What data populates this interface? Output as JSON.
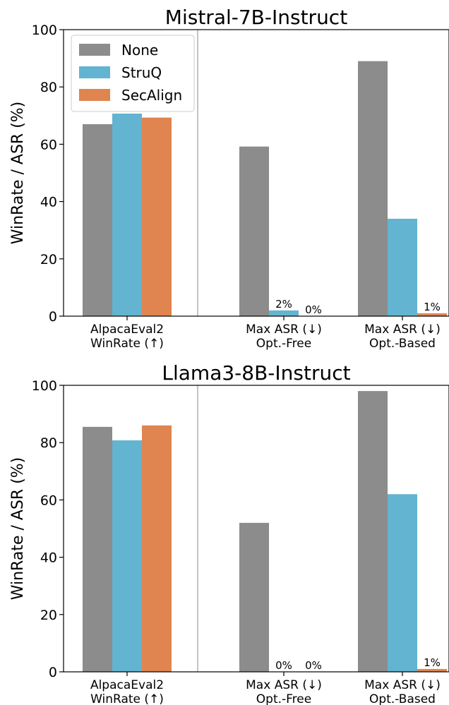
{
  "colors": {
    "None": "#8c8c8c",
    "StruQ": "#62b4d0",
    "SecAlign": "#e08450"
  },
  "legend": [
    "None",
    "StruQ",
    "SecAlign"
  ],
  "chart_data": [
    {
      "type": "bar",
      "title": "Mistral-7B-Instruct",
      "ylabel": "WinRate / ASR (%)",
      "ylim": [
        0,
        100
      ],
      "yticks": [
        "0",
        "20",
        "40",
        "60",
        "80",
        "100"
      ],
      "categories": [
        [
          "AlpacaEval2",
          "WinRate (↑)"
        ],
        [
          "Max ASR (↓)",
          "Opt.-Free"
        ],
        [
          "Max ASR (↓)",
          "Opt.-Based"
        ]
      ],
      "series": [
        {
          "name": "None",
          "values": [
            67,
            59.2,
            89
          ]
        },
        {
          "name": "StruQ",
          "values": [
            70.7,
            2,
            34
          ]
        },
        {
          "name": "SecAlign",
          "values": [
            69.3,
            0,
            1
          ]
        }
      ],
      "data_labels": [
        {
          "category": 1,
          "series": 1,
          "text": "2%"
        },
        {
          "category": 1,
          "series": 2,
          "text": "0%"
        },
        {
          "category": 2,
          "series": 2,
          "text": "1%"
        }
      ],
      "legend_position": "upper-left",
      "grid": false
    },
    {
      "type": "bar",
      "title": "Llama3-8B-Instruct",
      "ylabel": "WinRate / ASR (%)",
      "ylim": [
        0,
        100
      ],
      "yticks": [
        "0",
        "20",
        "40",
        "60",
        "80",
        "100"
      ],
      "categories": [
        [
          "AlpacaEval2",
          "WinRate (↑)"
        ],
        [
          "Max ASR (↓)",
          "Opt.-Free"
        ],
        [
          "Max ASR (↓)",
          "Opt.-Based"
        ]
      ],
      "series": [
        {
          "name": "None",
          "values": [
            85.5,
            52,
            98
          ]
        },
        {
          "name": "StruQ",
          "values": [
            80.8,
            0,
            62
          ]
        },
        {
          "name": "SecAlign",
          "values": [
            86,
            0,
            1
          ]
        }
      ],
      "data_labels": [
        {
          "category": 1,
          "series": 1,
          "text": "0%"
        },
        {
          "category": 1,
          "series": 2,
          "text": "0%"
        },
        {
          "category": 2,
          "series": 2,
          "text": "1%"
        }
      ],
      "legend_position": "none",
      "grid": false
    }
  ]
}
